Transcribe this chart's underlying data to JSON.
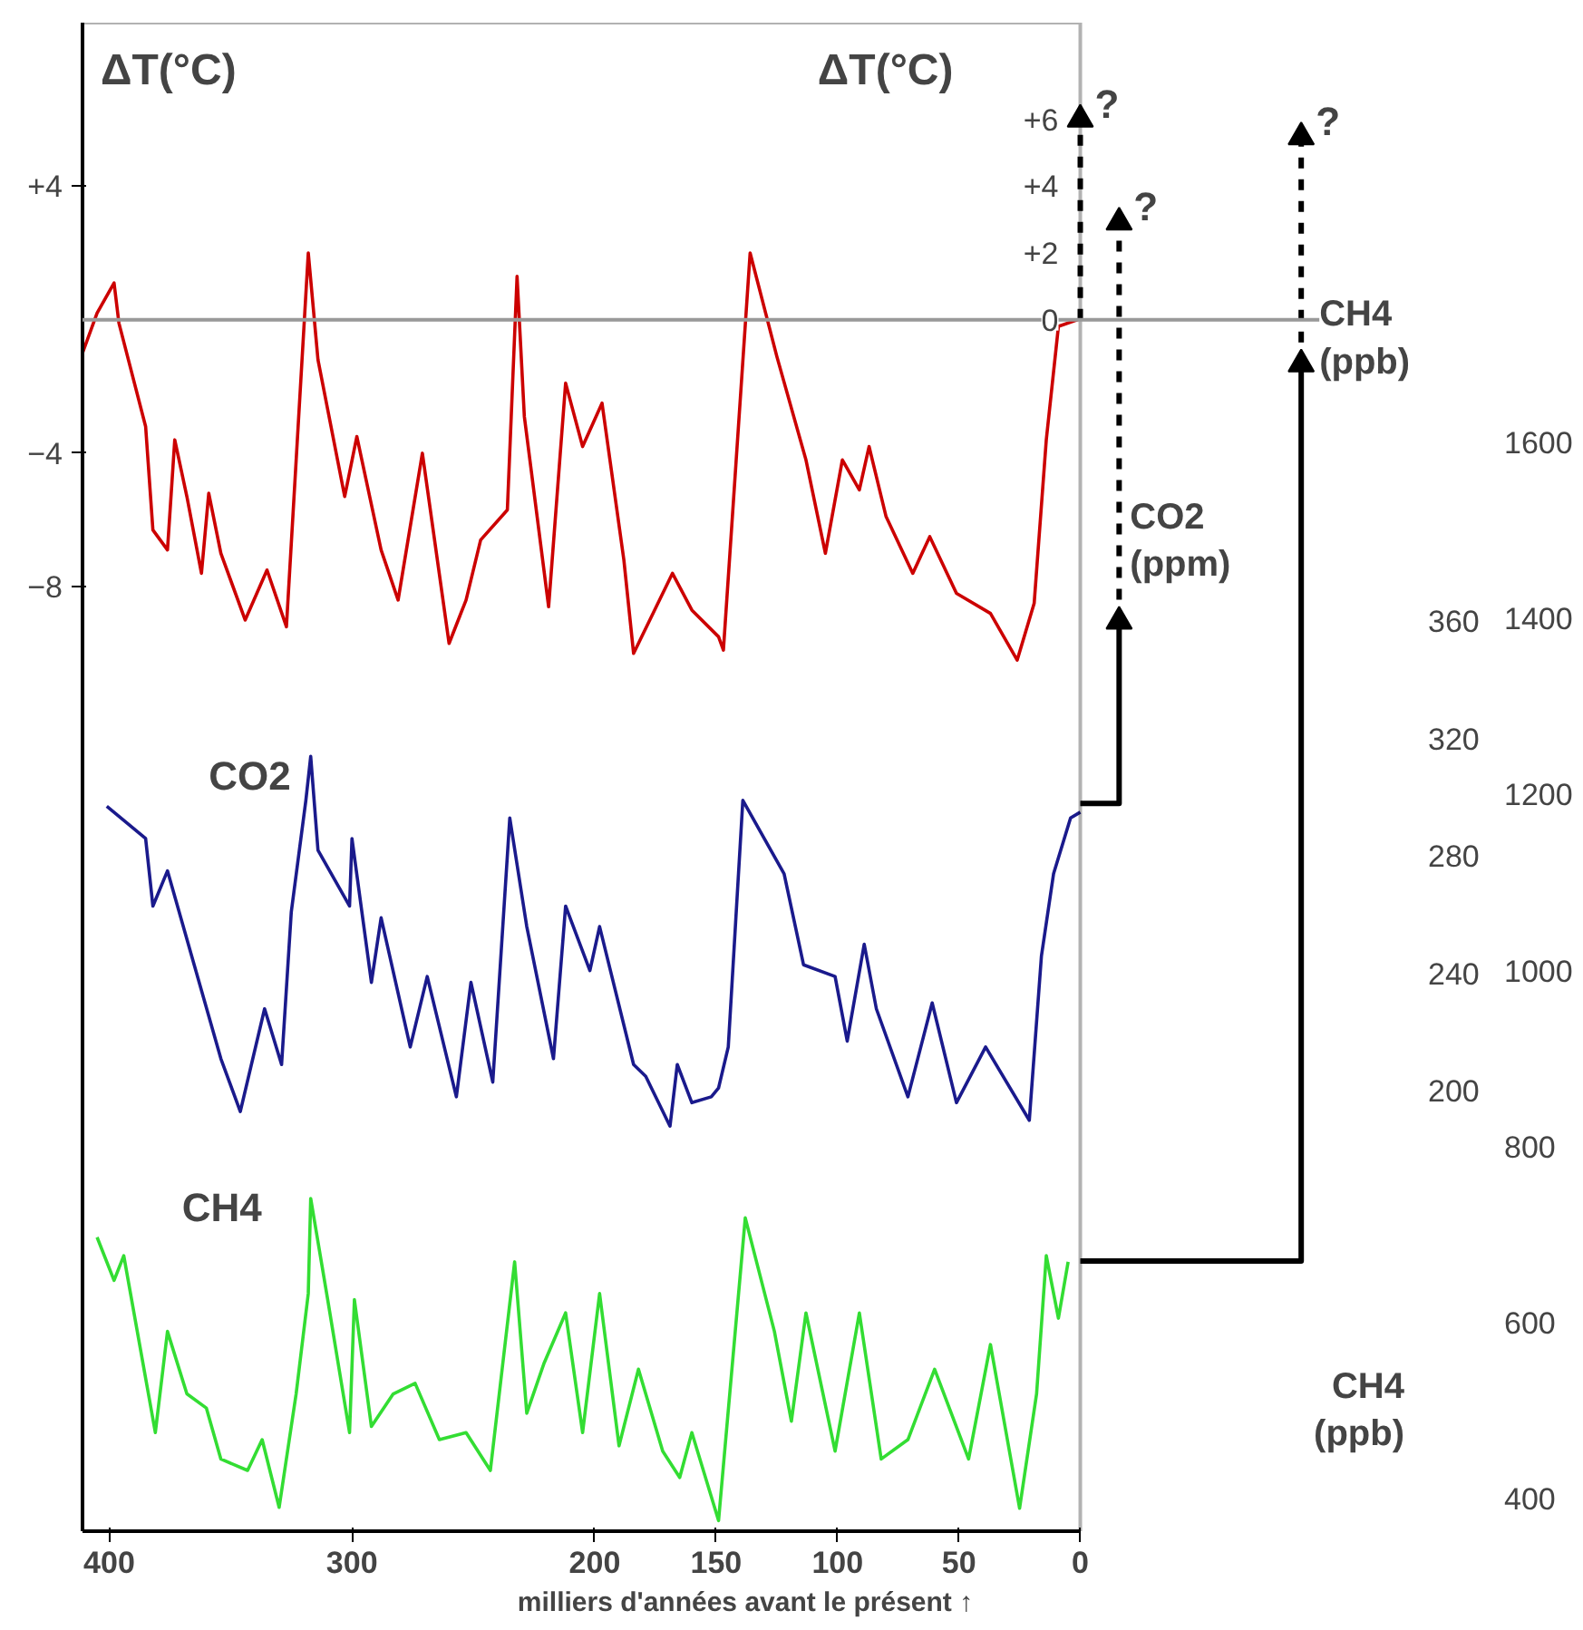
{
  "chart_data": {
    "type": "line",
    "xlabel": "milliers d'années avant le présent ↑",
    "ylabel": "ΔT(°C)",
    "y2label": "CO2\n(ppm)",
    "y3label": "CH4\n(ppb)",
    "xlim": [
      411,
      -135
    ],
    "xticks": [
      400,
      300,
      200,
      150,
      100,
      50,
      0
    ],
    "ylim": [
      -36.3,
      8.9
    ],
    "yticks": [
      {
        "value": 4,
        "label": "+4"
      },
      -4,
      -8
    ],
    "y2lim": [
      50,
      564
    ],
    "y2ticks": [
      200,
      240,
      280,
      320,
      360
    ],
    "y3lim": [
      363,
      2077
    ],
    "y3ticks": [
      400,
      600,
      800,
      1000,
      1200,
      1400,
      1600
    ],
    "ref_lines": [
      {
        "axis": "y",
        "value": 0,
        "color": "#999999"
      }
    ],
    "annotations": [
      "?",
      "?",
      "?",
      "CH4\n(ppb)",
      "ΔT(°C)",
      {
        "text": "+6",
        "y": 6
      },
      {
        "text": "+4",
        "y": 4
      },
      {
        "text": "+2",
        "y": 2
      },
      {
        "text": "0",
        "y": 0
      }
    ],
    "grid": false,
    "series": [
      {
        "color": "#cc0000",
        "axis": "y",
        "x": [
          411,
          405,
          398,
          396,
          385,
          382,
          376,
          373,
          368,
          362,
          359,
          354,
          344,
          335,
          327,
          318,
          314,
          303,
          298,
          288,
          281,
          271,
          260,
          253,
          247,
          236,
          232,
          229,
          219,
          212,
          205,
          197,
          188,
          184,
          168,
          160,
          149,
          147,
          136,
          125,
          113,
          105,
          98,
          91,
          87,
          80,
          69,
          62,
          51,
          37,
          26,
          19,
          14,
          9,
          1
        ],
        "values": [
          -1.0,
          0.2,
          1.1,
          -0.1,
          -3.2,
          -6.3,
          -6.9,
          -3.6,
          -5.3,
          -7.6,
          -5.2,
          -7.0,
          -9.0,
          -7.5,
          -9.2,
          2.0,
          -1.2,
          -5.3,
          -3.5,
          -6.9,
          -8.4,
          -4.0,
          -9.7,
          -8.4,
          -6.6,
          -5.7,
          1.3,
          -2.9,
          -8.6,
          -1.9,
          -3.8,
          -2.5,
          -7.2,
          -10.0,
          -7.6,
          -8.7,
          -9.5,
          -9.9,
          2.0,
          -1.1,
          -4.2,
          -7.0,
          -4.2,
          -5.1,
          -3.8,
          -5.9,
          -7.6,
          -6.5,
          -8.2,
          -8.8,
          -10.2,
          -8.5,
          -3.6,
          -0.2,
          0
        ]
      },
      {
        "name": "CO2",
        "color": "#1a1a8c",
        "axis": "y2",
        "x": [
          401,
          385,
          382,
          376,
          365,
          354,
          346,
          336,
          329,
          325,
          319,
          317,
          314,
          301,
          300,
          292,
          288,
          276,
          269,
          257,
          251,
          242,
          235,
          228,
          217,
          212,
          202,
          198,
          184,
          179,
          169,
          166,
          160,
          152,
          149,
          145,
          139,
          122,
          114,
          101,
          96,
          89,
          84,
          71,
          61,
          51,
          39,
          21,
          16,
          11,
          4,
          0
        ],
        "values": [
          297,
          286,
          263,
          275,
          243,
          211,
          193,
          228,
          209,
          261,
          299,
          314,
          282,
          263,
          286,
          237,
          259,
          215,
          239,
          198,
          237,
          203,
          293,
          256,
          211,
          263,
          241,
          256,
          209,
          205,
          188,
          209,
          196,
          198,
          201,
          215,
          299,
          274,
          243,
          239,
          217,
          250,
          228,
          198,
          230,
          196,
          215,
          190,
          246,
          274,
          293,
          295
        ]
      },
      {
        "name": "CH4",
        "color": "#33dd33",
        "axis": "y3",
        "x": [
          405,
          398,
          394,
          381,
          376,
          368,
          360,
          354,
          343,
          337,
          330,
          323,
          318,
          317,
          310,
          301,
          299,
          292,
          283,
          274,
          264,
          253,
          243,
          233,
          228,
          221,
          212,
          205,
          198,
          190,
          182,
          172,
          165,
          160,
          149,
          138,
          126,
          119,
          113,
          101,
          91,
          82,
          71,
          60,
          46,
          37,
          25,
          18,
          14,
          9,
          5
        ],
        "values": [
          697,
          648,
          676,
          475,
          590,
          519,
          503,
          445,
          432,
          467,
          390,
          519,
          633,
          741,
          626,
          475,
          626,
          482,
          519,
          531,
          467,
          475,
          432,
          669,
          497,
          553,
          611,
          475,
          633,
          460,
          547,
          454,
          424,
          475,
          375,
          719,
          590,
          488,
          611,
          454,
          611,
          445,
          467,
          547,
          445,
          575,
          389,
          519,
          676,
          605,
          669
        ]
      },
      {
        "color": "#000000",
        "axis": "y",
        "line_style": "dashed",
        "x": [
          0,
          0
        ],
        "values": [
          0,
          6
        ]
      },
      {
        "color": "#000000",
        "axis": "y2",
        "line_style": "solid",
        "x": [
          0,
          -16,
          -16
        ],
        "values": [
          298,
          298,
          360
        ]
      },
      {
        "color": "#000000",
        "axis": "y2",
        "line_style": "dashed",
        "x": [
          -16,
          -16
        ],
        "values": [
          360,
          496
        ]
      },
      {
        "color": "#000000",
        "axis": "y3",
        "line_style": "solid",
        "x": [
          0,
          -91,
          -91
        ],
        "values": [
          670,
          670,
          1689
        ]
      },
      {
        "color": "#000000",
        "axis": "y3",
        "line_style": "dashed",
        "x": [
          -91,
          -91
        ],
        "values": [
          1689,
          1947
        ]
      }
    ]
  }
}
